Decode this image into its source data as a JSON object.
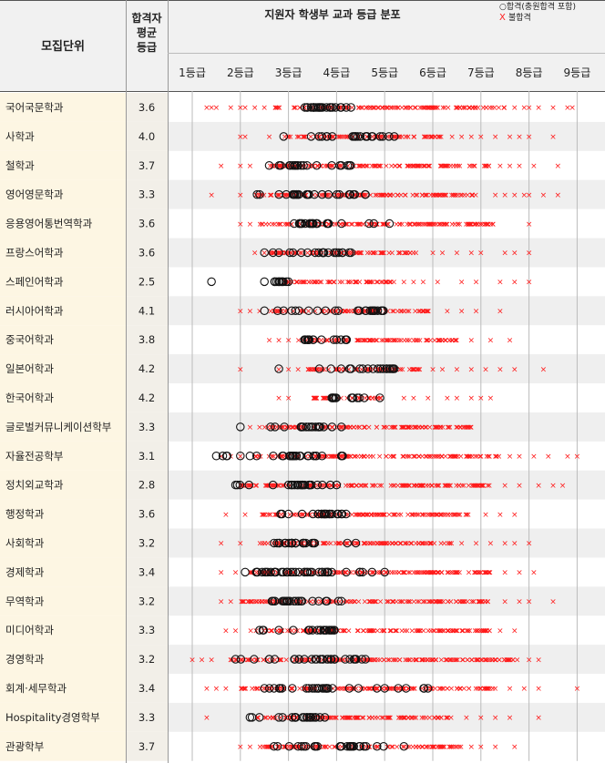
{
  "header": {
    "dept_title": "모집단위",
    "avg_title_lines": [
      "합격자",
      "평균",
      "등급"
    ],
    "dist_title": "지원자 학생부 교과 등급 분포",
    "legend_pass": "○합격(충원합격 포함)",
    "legend_fail_mark": "X",
    "legend_fail_label": "불합격"
  },
  "chart_data": {
    "type": "scatter",
    "title": "지원자 학생부 교과 등급 분포",
    "x_ticks": [
      "1등급",
      "2등급",
      "3등급",
      "4등급",
      "5등급",
      "6등급",
      "7등급",
      "8등급",
      "9등급"
    ],
    "xlim": [
      1,
      9
    ],
    "legend": [
      "○합격(충원합격 포함)",
      "X 불합격"
    ],
    "legend_position": "top-right",
    "colors": {
      "pass": "#111111",
      "fail": "#ff1a1a",
      "label_bg": "#fdf6e3",
      "avg_bg": "#f2efe8",
      "stripe": "#efefef",
      "grid": "#bbbbbb"
    },
    "rows": [
      {
        "name": "국어국문학과",
        "avg": "3.6",
        "fail_range": [
          2.7,
          7.5
        ],
        "pass_range": [
          3.0,
          4.6
        ],
        "pass_dense": [
          3.3,
          4.0
        ],
        "fail_extra": [
          1.3,
          1.4,
          1.5,
          1.8,
          2.0,
          2.1,
          2.3,
          2.5,
          7.7,
          7.9,
          8.0,
          8.2,
          8.5,
          8.8,
          8.9
        ],
        "pass_extra": [
          4.2,
          4.3
        ]
      },
      {
        "name": "사학과",
        "avg": "4.0",
        "fail_range": [
          2.9,
          6.2
        ],
        "pass_range": [
          3.2,
          5.4
        ],
        "pass_dense": [
          4.3,
          4.7
        ],
        "fail_extra": [
          2.0,
          2.1,
          2.6,
          6.4,
          6.6,
          6.8,
          7.0,
          7.3,
          7.6,
          7.8,
          8.0,
          8.5
        ],
        "pass_extra": [
          2.9,
          3.8
        ]
      },
      {
        "name": "철학과",
        "avg": "3.7",
        "fail_range": [
          2.6,
          7.2
        ],
        "pass_range": [
          2.7,
          4.4
        ],
        "pass_dense": [
          3.0,
          3.4
        ],
        "fail_extra": [
          1.6,
          2.0,
          2.2,
          7.4,
          7.6,
          7.8,
          8.1,
          8.6
        ],
        "pass_extra": [
          2.6,
          3.9,
          4.1
        ]
      },
      {
        "name": "영어영문학과",
        "avg": "3.3",
        "fail_range": [
          2.3,
          7.0
        ],
        "pass_range": [
          2.3,
          4.6
        ],
        "pass_dense": [
          3.0,
          3.6
        ],
        "fail_extra": [
          1.4,
          2.0,
          7.3,
          7.5,
          7.7,
          7.9,
          8.0,
          8.3,
          8.6
        ],
        "pass_extra": [
          2.4,
          3.4,
          3.7,
          4.6
        ]
      },
      {
        "name": "응용영어통번역학과",
        "avg": "3.6",
        "fail_range": [
          2.4,
          7.3
        ],
        "pass_range": [
          3.0,
          5.1
        ],
        "pass_dense": [
          3.1,
          3.8
        ],
        "fail_extra": [
          2.0,
          2.2,
          8.0
        ],
        "pass_extra": [
          3.5,
          3.8,
          5.1
        ]
      },
      {
        "name": "프랑스어학과",
        "avg": "3.6",
        "fail_range": [
          2.6,
          5.8
        ],
        "pass_range": [
          2.6,
          4.3
        ],
        "pass_dense": [
          3.6,
          4.2
        ],
        "fail_extra": [
          2.3,
          2.5,
          6.0,
          6.2,
          6.5,
          6.8,
          7.0,
          7.5,
          7.7,
          8.0
        ],
        "pass_extra": [
          2.5,
          2.8,
          4.3
        ]
      },
      {
        "name": "스페인어학과",
        "avg": "2.5",
        "fail_range": [
          2.9,
          5.2
        ],
        "pass_range": [
          2.5,
          3.0
        ],
        "pass_dense": [
          2.7,
          2.9
        ],
        "fail_extra": [
          5.4,
          5.6,
          5.8,
          6.1,
          6.6,
          6.9,
          7.4,
          7.7,
          8.0
        ],
        "pass_extra": [
          1.4,
          2.5,
          3.0
        ]
      },
      {
        "name": "러시아어학과",
        "avg": "4.1",
        "fail_range": [
          2.6,
          6.0
        ],
        "pass_range": [
          2.5,
          5.0
        ],
        "pass_dense": [
          4.6,
          5.0
        ],
        "fail_extra": [
          2.0,
          2.2,
          2.4,
          6.3,
          6.6,
          6.9,
          7.4
        ],
        "pass_extra": [
          2.5,
          2.9,
          4.7,
          4.8
        ]
      },
      {
        "name": "중국어학과",
        "avg": "3.8",
        "fail_range": [
          3.2,
          6.6
        ],
        "pass_range": [
          3.2,
          4.3
        ],
        "pass_dense": [
          3.3,
          3.7
        ],
        "fail_extra": [
          2.6,
          2.8,
          3.0,
          6.8,
          7.2,
          7.6
        ],
        "pass_extra": [
          3.4,
          4.0
        ]
      },
      {
        "name": "일본어학과",
        "avg": "4.2",
        "fail_range": [
          3.4,
          5.8
        ],
        "pass_range": [
          3.3,
          5.2
        ],
        "pass_dense": [
          4.9,
          5.2
        ],
        "fail_extra": [
          2.0,
          2.8,
          3.0,
          3.2,
          6.0,
          6.2,
          6.5,
          6.8,
          7.1,
          7.4,
          7.7,
          8.3
        ],
        "pass_extra": [
          2.8,
          4.3,
          5.2
        ]
      },
      {
        "name": "한국어학과",
        "avg": "4.2",
        "fail_range": [
          3.5,
          5.0
        ],
        "pass_range": [
          3.9,
          4.9
        ],
        "pass_dense": [
          3.9,
          4.1
        ],
        "fail_extra": [
          2.8,
          3.0,
          5.4,
          5.6,
          5.9,
          6.3,
          6.5,
          6.8,
          7.0,
          7.2
        ],
        "pass_extra": [
          3.9,
          4.9
        ]
      },
      {
        "name": "글로벌커뮤니케이션학부",
        "avg": "3.3",
        "fail_range": [
          2.5,
          6.8
        ],
        "pass_range": [
          2.0,
          4.1
        ],
        "pass_dense": [
          3.2,
          3.5
        ],
        "fail_extra": [
          2.2,
          2.4
        ],
        "pass_extra": [
          2.0,
          3.3,
          4.1
        ]
      },
      {
        "name": "자율전공학부",
        "avg": "3.1",
        "fail_range": [
          2.3,
          7.4
        ],
        "pass_range": [
          1.6,
          4.4
        ],
        "pass_dense": [
          3.0,
          3.6
        ],
        "fail_extra": [
          1.6,
          1.8,
          2.0,
          7.6,
          7.8,
          8.1,
          8.4,
          8.8,
          9.0
        ],
        "pass_extra": [
          1.5,
          2.0,
          2.2,
          3.4,
          4.1
        ]
      },
      {
        "name": "정치외교학과",
        "avg": "2.8",
        "fail_range": [
          2.0,
          7.2
        ],
        "pass_range": [
          1.9,
          4.0
        ],
        "pass_dense": [
          3.0,
          3.5
        ],
        "fail_extra": [
          7.5,
          7.8,
          8.2,
          8.5,
          8.7
        ],
        "pass_extra": [
          1.9,
          3.0,
          3.6,
          4.0
        ]
      },
      {
        "name": "행정학과",
        "avg": "3.6",
        "fail_range": [
          2.4,
          6.8
        ],
        "pass_range": [
          2.8,
          4.4
        ],
        "pass_dense": [
          3.5,
          4.0
        ],
        "fail_extra": [
          1.7,
          2.1,
          7.1,
          7.4,
          7.7
        ],
        "pass_extra": [
          3.0,
          3.8,
          3.9,
          4.1
        ]
      },
      {
        "name": "사회학과",
        "avg": "3.2",
        "fail_range": [
          2.4,
          6.4
        ],
        "pass_range": [
          2.6,
          4.4
        ],
        "pass_dense": [
          3.0,
          3.6
        ],
        "fail_extra": [
          1.6,
          2.0,
          6.6,
          6.9,
          7.2,
          7.5,
          7.7,
          8.0
        ],
        "pass_extra": [
          2.7,
          3.3,
          4.4
        ]
      },
      {
        "name": "경제학과",
        "avg": "3.4",
        "fail_range": [
          2.2,
          7.2
        ],
        "pass_range": [
          2.0,
          5.0
        ],
        "pass_dense": [
          2.4,
          3.9
        ],
        "fail_extra": [
          1.6,
          1.9,
          7.5,
          7.8,
          8.1
        ],
        "pass_extra": [
          2.1,
          4.2,
          5.0
        ]
      },
      {
        "name": "무역학과",
        "avg": "3.2",
        "fail_range": [
          2.0,
          7.2
        ],
        "pass_range": [
          2.5,
          4.1
        ],
        "pass_dense": [
          2.6,
          3.3
        ],
        "fail_extra": [
          1.6,
          1.8,
          7.5,
          7.8,
          8.0,
          8.5
        ],
        "pass_extra": [
          3.5,
          3.8,
          4.1
        ]
      },
      {
        "name": "미디어학과",
        "avg": "3.3",
        "fail_range": [
          2.2,
          7.2
        ],
        "pass_range": [
          2.3,
          4.1
        ],
        "pass_dense": [
          3.4,
          4.0
        ],
        "fail_extra": [
          1.7,
          1.9,
          7.4,
          7.7
        ],
        "pass_extra": [
          2.4,
          2.8,
          3.1
        ]
      },
      {
        "name": "경영학과",
        "avg": "3.2",
        "fail_range": [
          1.7,
          7.8
        ],
        "pass_range": [
          2.0,
          4.6
        ],
        "pass_dense": [
          3.1,
          4.0
        ],
        "fail_extra": [
          1.0,
          1.2,
          1.4,
          8.0,
          8.2
        ],
        "pass_extra": [
          1.9,
          2.6,
          4.6
        ]
      },
      {
        "name": "회계·세무학과",
        "avg": "3.4",
        "fail_range": [
          2.0,
          7.3
        ],
        "pass_range": [
          2.5,
          5.9
        ],
        "pass_dense": [
          3.3,
          3.8
        ],
        "fail_extra": [
          1.3,
          1.5,
          1.7,
          7.6,
          7.9,
          8.2,
          9.0
        ],
        "pass_extra": [
          2.5,
          2.7,
          5.0,
          5.9
        ]
      },
      {
        "name": "Hospitality경영학부",
        "avg": "3.3",
        "fail_range": [
          2.3,
          6.4
        ],
        "pass_range": [
          2.2,
          3.9
        ],
        "pass_dense": [
          3.0,
          3.6
        ],
        "fail_extra": [
          1.3,
          6.7,
          7.0,
          7.3,
          7.6,
          8.2
        ],
        "pass_extra": [
          2.2,
          2.8
        ]
      },
      {
        "name": "관광학부",
        "avg": "3.7",
        "fail_range": [
          2.4,
          6.6
        ],
        "pass_range": [
          2.6,
          5.4
        ],
        "pass_dense": [
          4.0,
          4.6
        ],
        "fail_extra": [
          2.0,
          2.2,
          6.8,
          7.0,
          7.3,
          7.7
        ],
        "pass_extra": [
          2.7,
          3.2,
          3.6,
          5.4
        ]
      }
    ]
  }
}
